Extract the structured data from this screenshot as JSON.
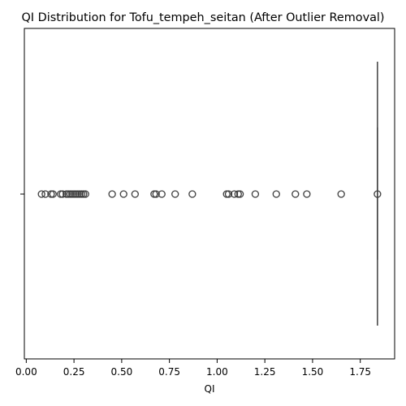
{
  "chart_data": {
    "type": "boxplot",
    "title": "QI Distribution for Tofu_tempeh_seitan (After Outlier Removal)",
    "xlabel": "QI",
    "ylabel": "",
    "xlim": [
      -0.01,
      1.93
    ],
    "x_ticks": [
      0.0,
      0.25,
      0.5,
      0.75,
      1.0,
      1.25,
      1.5,
      1.75
    ],
    "x_tick_labels": [
      "0.00",
      "0.25",
      "0.50",
      "0.75",
      "1.00",
      "1.25",
      "1.50",
      "1.75"
    ],
    "grid": false,
    "colors": {
      "box_edge": "#3f3f3f",
      "points": "#3f3f3f"
    },
    "box": {
      "q1": 1.84,
      "median": 1.84,
      "q3": 1.84,
      "whisker_low": 1.84,
      "whisker_high": 1.84
    },
    "outliers": [
      0.08,
      0.1,
      0.13,
      0.14,
      0.18,
      0.19,
      0.21,
      0.22,
      0.23,
      0.24,
      0.25,
      0.26,
      0.27,
      0.28,
      0.29,
      0.3,
      0.31,
      0.45,
      0.51,
      0.57,
      0.67,
      0.68,
      0.71,
      0.78,
      0.87,
      1.05,
      1.06,
      1.09,
      1.11,
      1.12,
      1.2,
      1.31,
      1.41,
      1.47,
      1.65
    ]
  }
}
